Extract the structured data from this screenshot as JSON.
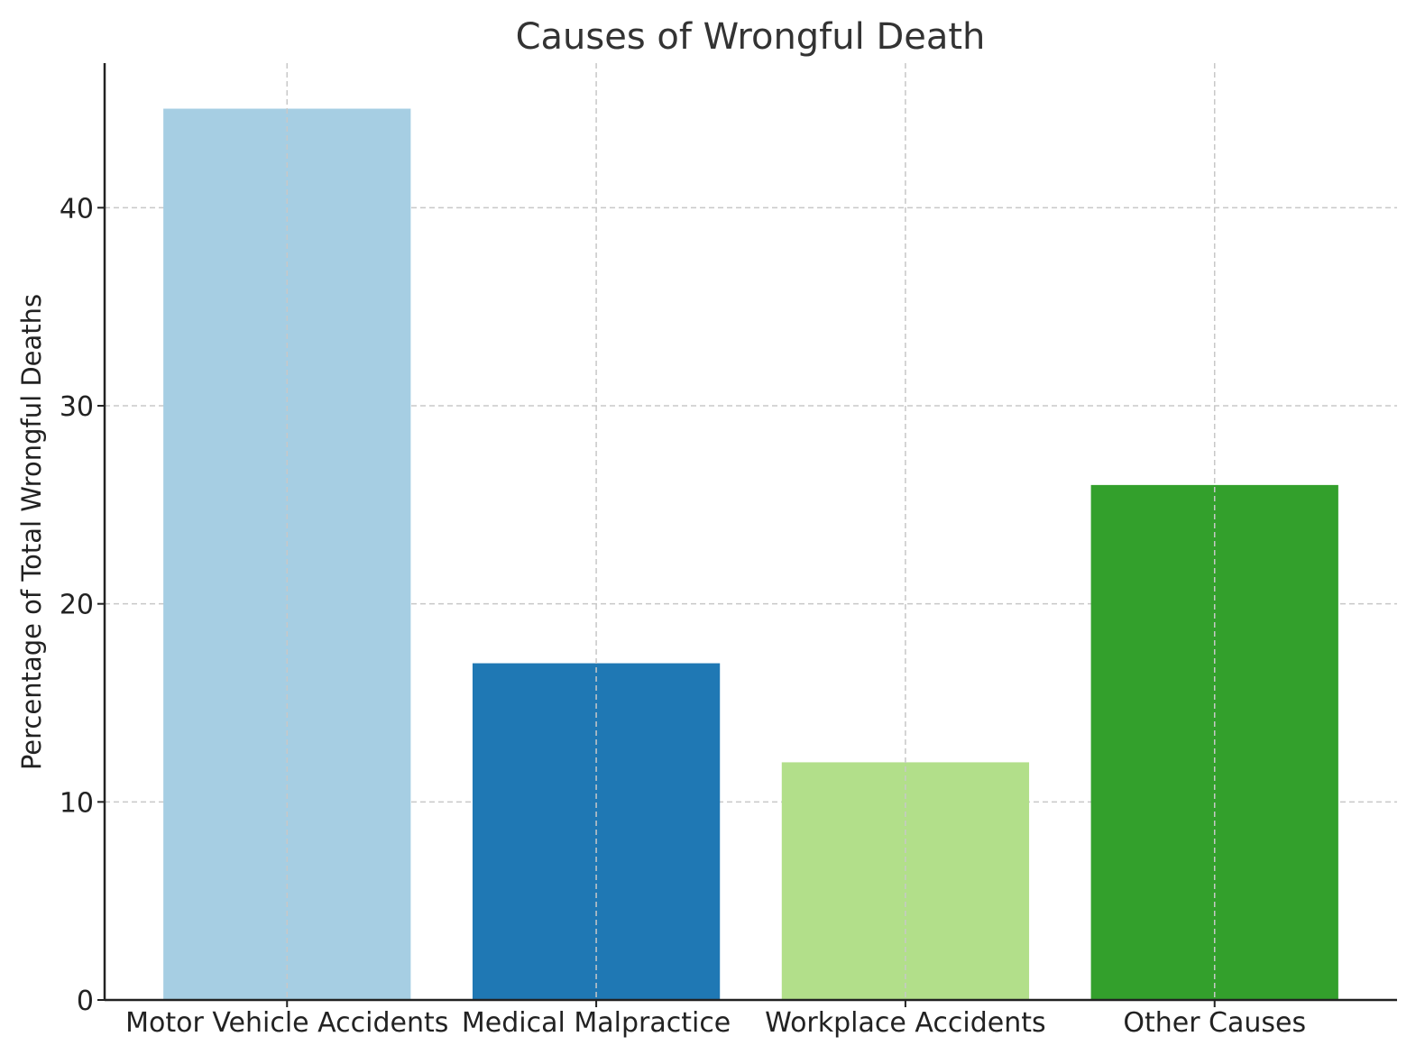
{
  "chart_data": {
    "type": "bar",
    "title": "Causes of Wrongful Death",
    "xlabel": "",
    "ylabel": "Percentage of Total Wrongful Deaths",
    "categories": [
      "Motor Vehicle Accidents",
      "Medical Malpractice",
      "Workplace Accidents",
      "Other Causes"
    ],
    "values": [
      45,
      17,
      12,
      26
    ],
    "colors": [
      "#a6cee3",
      "#1f78b4",
      "#b2df8a",
      "#33a02c"
    ],
    "ylim": [
      0,
      47.3
    ],
    "yticks": [
      0,
      10,
      20,
      30,
      40
    ],
    "grid": true
  }
}
